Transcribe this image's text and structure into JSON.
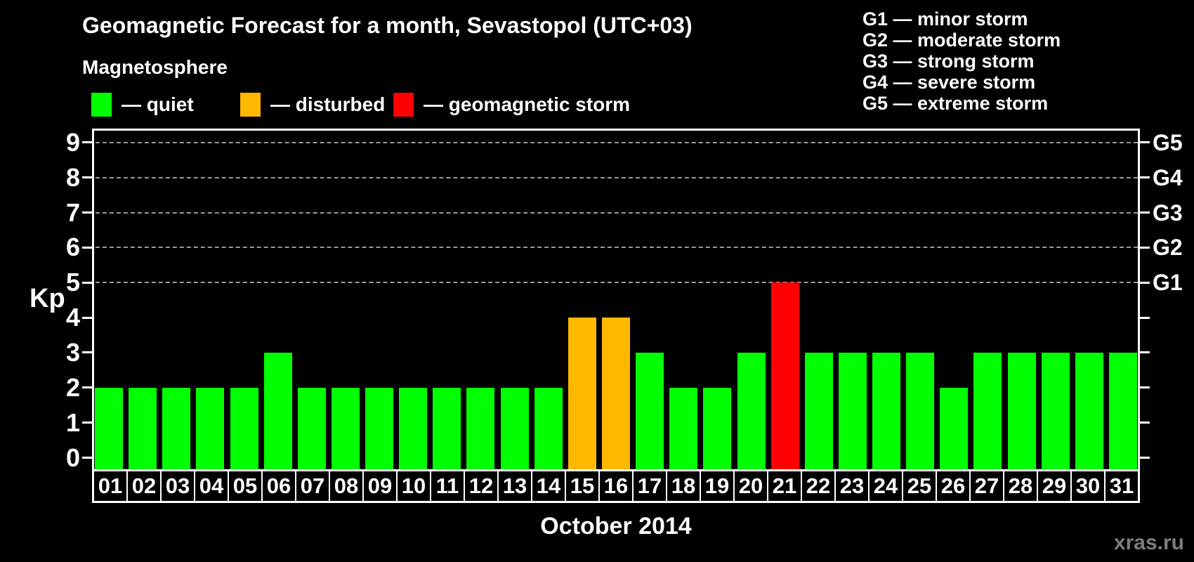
{
  "header": {
    "title": "Geomagnetic Forecast for a month, Sevastopol (UTC+03)"
  },
  "legend": {
    "heading": "Magnetosphere",
    "items": [
      {
        "name": "quiet",
        "label": "— quiet",
        "color": "#00ff00"
      },
      {
        "name": "disturbed",
        "label": "— disturbed",
        "color": "#ffb800"
      },
      {
        "name": "storm",
        "label": "— geomagnetic storm",
        "color": "#ff0000"
      }
    ]
  },
  "storm_scale": {
    "items": [
      "G1 — minor storm",
      "G2 — moderate storm",
      "G3 — strong storm",
      "G4 — severe storm",
      "G5 — extreme storm"
    ]
  },
  "chart_data": {
    "type": "bar",
    "title": "Geomagnetic Forecast for a month, Sevastopol (UTC+03)",
    "xlabel": "October 2014",
    "ylabel": "Kp",
    "ylim": [
      0,
      9
    ],
    "y_ticks": [
      0,
      1,
      2,
      3,
      4,
      5,
      6,
      7,
      8,
      9
    ],
    "gridlines_at_kp": [
      5,
      6,
      7,
      8,
      9
    ],
    "grid": "dashed horizontal lines at storm levels only",
    "legend_position": "top-left",
    "right_axis": {
      "labels": [
        "G1",
        "G2",
        "G3",
        "G4",
        "G5"
      ],
      "kp_levels": [
        5,
        6,
        7,
        8,
        9
      ]
    },
    "categories": [
      "01",
      "02",
      "03",
      "04",
      "05",
      "06",
      "07",
      "08",
      "09",
      "10",
      "11",
      "12",
      "13",
      "14",
      "15",
      "16",
      "17",
      "18",
      "19",
      "20",
      "21",
      "22",
      "23",
      "24",
      "25",
      "26",
      "27",
      "28",
      "29",
      "30",
      "31"
    ],
    "values": [
      2,
      2,
      2,
      2,
      2,
      3,
      2,
      2,
      2,
      2,
      2,
      2,
      2,
      2,
      4,
      4,
      3,
      2,
      2,
      3,
      5,
      3,
      3,
      3,
      3,
      2,
      3,
      3,
      3,
      3,
      3
    ],
    "statuses": [
      "quiet",
      "quiet",
      "quiet",
      "quiet",
      "quiet",
      "quiet",
      "quiet",
      "quiet",
      "quiet",
      "quiet",
      "quiet",
      "quiet",
      "quiet",
      "quiet",
      "disturbed",
      "disturbed",
      "quiet",
      "quiet",
      "quiet",
      "quiet",
      "storm",
      "quiet",
      "quiet",
      "quiet",
      "quiet",
      "quiet",
      "quiet",
      "quiet",
      "quiet",
      "quiet",
      "quiet"
    ],
    "status_colors": {
      "quiet": "#00ff00",
      "disturbed": "#ffb800",
      "storm": "#ff0000"
    }
  },
  "footer": {
    "x_axis_title": "October 2014",
    "watermark": "xras.ru"
  }
}
